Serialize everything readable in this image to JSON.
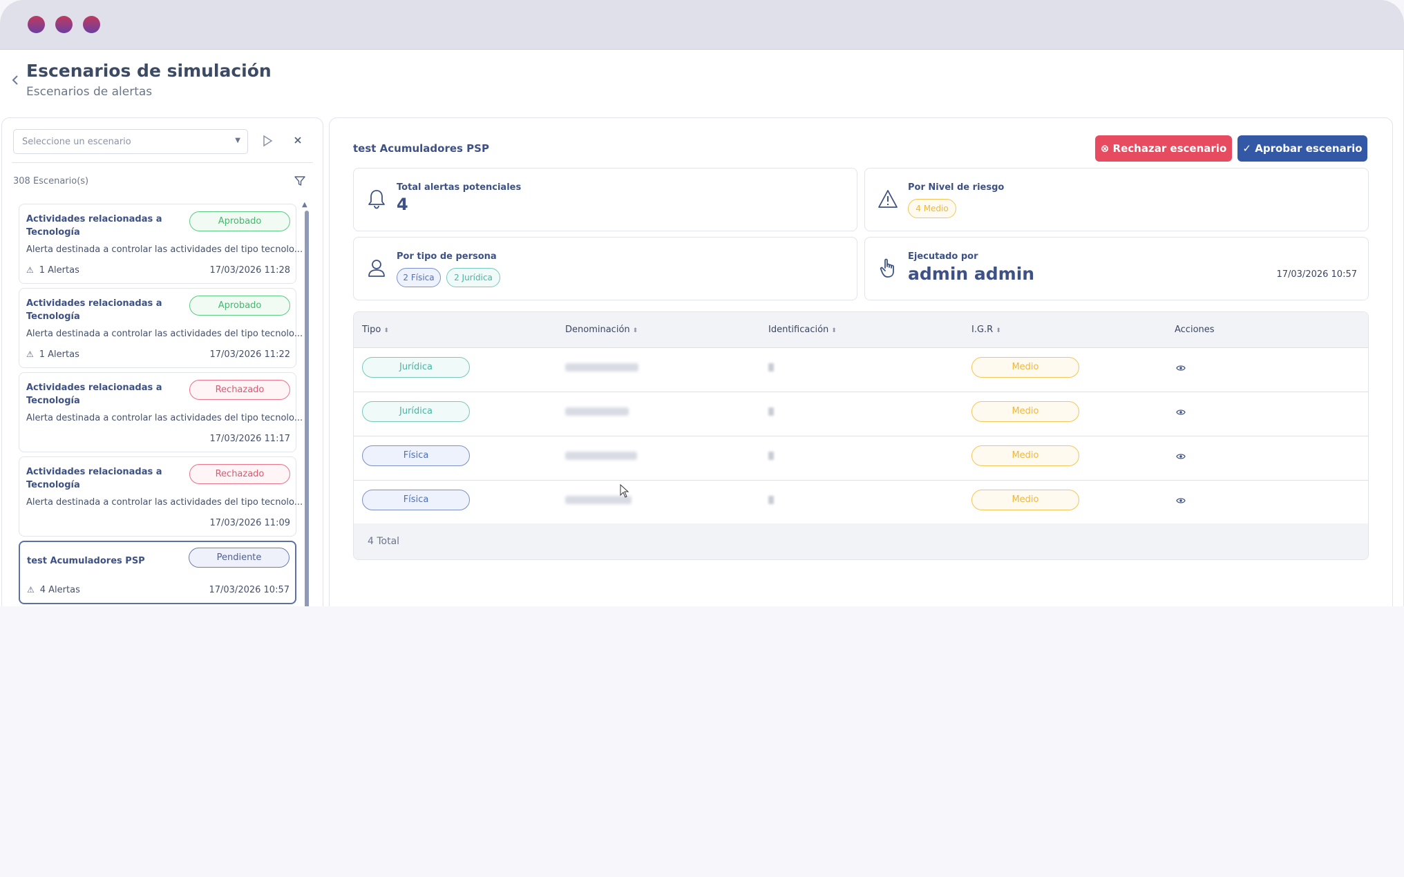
{
  "header": {
    "title": "Escenarios de simulación",
    "subtitle": "Escenarios de alertas"
  },
  "sidebar": {
    "select_placeholder": "Seleccione un escenario",
    "count_label": "308 Escenario(s)",
    "cards": [
      {
        "title": "Actividades relacionadas a Tecnología",
        "status": "Aprobado",
        "description": "Alerta destinada a controlar las actividades del tipo tecnolo...",
        "alerts": "1 Alertas",
        "date": "17/03/2026 11:28"
      },
      {
        "title": "Actividades relacionadas a Tecnología",
        "status": "Aprobado",
        "description": "Alerta destinada a controlar las actividades del tipo tecnolo...",
        "alerts": "1 Alertas",
        "date": "17/03/2026 11:22"
      },
      {
        "title": "Actividades relacionadas a Tecnología",
        "status": "Rechazado",
        "description": "Alerta destinada a controlar las actividades del tipo tecnolo...",
        "alerts": "",
        "date": "17/03/2026 11:17"
      },
      {
        "title": "Actividades relacionadas a Tecnología",
        "status": "Rechazado",
        "description": "Alerta destinada a controlar las actividades del tipo tecnolo...",
        "alerts": "",
        "date": "17/03/2026 11:09"
      },
      {
        "title": "test Acumuladores PSP",
        "status": "Pendiente",
        "description": "",
        "alerts": "4 Alertas",
        "date": "17/03/2026 10:57"
      }
    ]
  },
  "detail": {
    "title": "test Acumuladores PSP",
    "reject_label": "Rechazar escenario",
    "approve_label": "Aprobar escenario",
    "stats": {
      "total_label": "Total alertas potenciales",
      "total_value": "4",
      "risk_label": "Por Nivel de riesgo",
      "risk_pill": "4 Medio",
      "person_label": "Por tipo de persona",
      "person_fisica": "2 Física",
      "person_juridica": "2 Jurídica",
      "exec_label": "Ejecutado por",
      "exec_value": "admin admin",
      "exec_date": "17/03/2026 10:57"
    },
    "table": {
      "columns": [
        "Tipo",
        "Denominación",
        "Identificación",
        "I.G.R",
        "Acciones"
      ],
      "rows": [
        {
          "tipo": "Jurídica",
          "igr": "Medio"
        },
        {
          "tipo": "Jurídica",
          "igr": "Medio"
        },
        {
          "tipo": "Física",
          "igr": "Medio"
        },
        {
          "tipo": "Física",
          "igr": "Medio"
        }
      ],
      "total": "4 Total"
    }
  },
  "icons": {
    "back": "chevron-left-icon",
    "play": "play-icon",
    "close": "close-icon",
    "filter": "filter-icon",
    "bell": "bell-icon",
    "warning": "warning-icon",
    "person": "person-icon",
    "hand": "pointer-hand-icon",
    "eye": "eye-icon"
  },
  "colors": {
    "primary": "#3359a6",
    "danger": "#e64b5f",
    "approved": "#3fba6a",
    "medio": "#f0b83a"
  }
}
